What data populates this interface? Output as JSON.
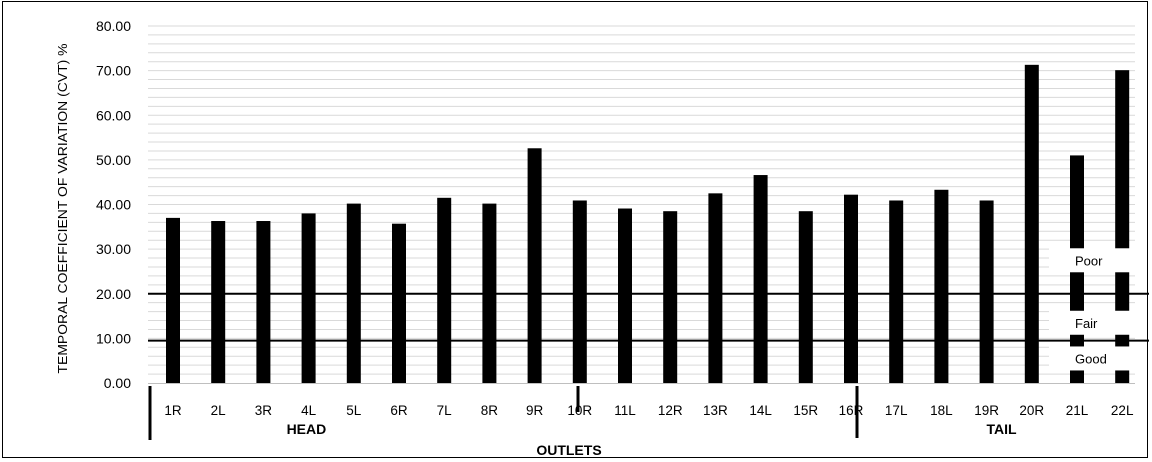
{
  "chart_data": {
    "type": "bar",
    "title": "",
    "ylabel": "TEMPORAL COEFFICIENT OF VARIATION (CVT) %",
    "xlabel": "OUTLETS",
    "ylim": [
      0,
      80
    ],
    "yticks": [
      "0.00",
      "10.00",
      "20.00",
      "30.00",
      "40.00",
      "50.00",
      "60.00",
      "70.00",
      "80.00"
    ],
    "grid": "horizontal minor lines",
    "categories": [
      "1R",
      "2L",
      "3R",
      "4L",
      "5L",
      "6R",
      "7L",
      "8R",
      "9R",
      "10R",
      "11L",
      "12R",
      "13R",
      "14L",
      "15R",
      "16R",
      "17L",
      "18L",
      "19R",
      "20R",
      "21L",
      "22L"
    ],
    "values": [
      37.0,
      36.3,
      36.3,
      38.0,
      40.2,
      35.7,
      41.5,
      40.2,
      52.6,
      40.9,
      39.1,
      38.5,
      42.5,
      46.6,
      38.5,
      42.2,
      40.9,
      43.3,
      40.9,
      71.3,
      51.0,
      70.1
    ],
    "groups": [
      {
        "label": "HEAD",
        "from": 0,
        "to": 9
      },
      {
        "label": "TAIL",
        "from": 15,
        "to": 21
      }
    ],
    "reference_lines": [
      {
        "value": 20,
        "label": "Poor"
      },
      {
        "value": 9.5,
        "label": "Fair"
      }
    ],
    "zone_labels": [
      {
        "label": "Poor",
        "value": 27.5
      },
      {
        "label": "Fair",
        "value": 13.5
      },
      {
        "label": "Good",
        "value": 5.5
      }
    ],
    "bar_color": "#000000",
    "grid_color": "#d9d9d9"
  }
}
